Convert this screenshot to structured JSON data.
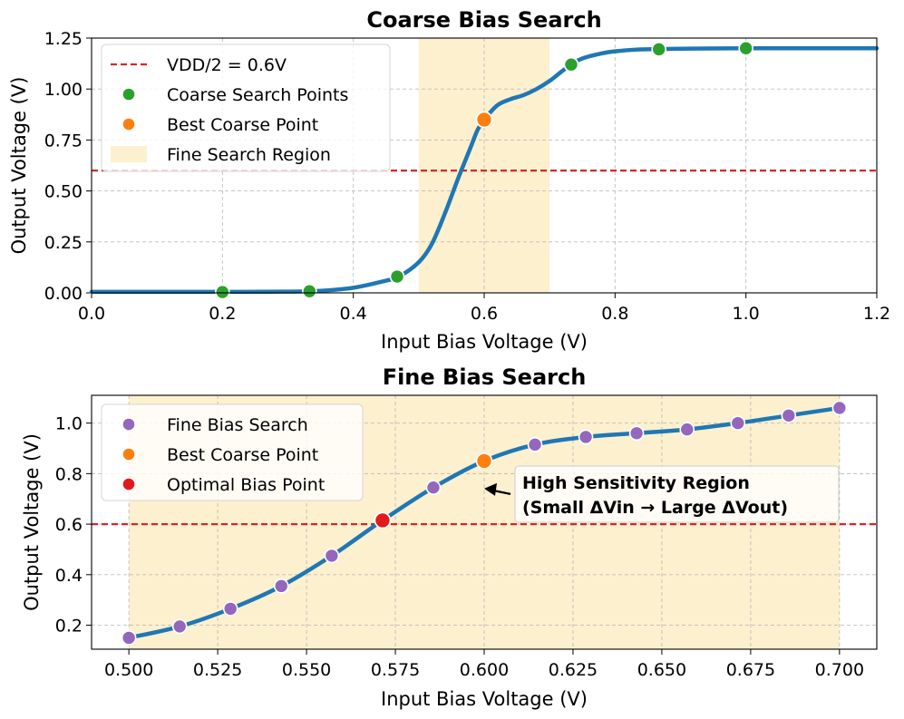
{
  "chart_data": [
    {
      "type": "line",
      "title": "Coarse Bias Search",
      "xlabel": "Input Bias Voltage (V)",
      "ylabel": "Output Voltage (V)",
      "xlim": [
        0.0,
        1.2
      ],
      "ylim": [
        0.0,
        1.25
      ],
      "xticks": [
        "0.0",
        "0.2",
        "0.4",
        "0.6",
        "0.8",
        "1.0",
        "1.2"
      ],
      "yticks": [
        "0.00",
        "0.25",
        "0.50",
        "0.75",
        "1.00",
        "1.25"
      ],
      "grid": true,
      "legend_position": "upper-left",
      "curve": {
        "color": "#1f77b4",
        "x": [
          0.0,
          0.1,
          0.2,
          0.3,
          0.35,
          0.4,
          0.45,
          0.47,
          0.5,
          0.52,
          0.54,
          0.56,
          0.57,
          0.58,
          0.59,
          0.6,
          0.62,
          0.64,
          0.66,
          0.68,
          0.7,
          0.72,
          0.733,
          0.75,
          0.78,
          0.8,
          0.83,
          0.867,
          0.9,
          1.0,
          1.1,
          1.2
        ],
        "y": [
          0.005,
          0.005,
          0.005,
          0.006,
          0.01,
          0.025,
          0.06,
          0.08,
          0.15,
          0.24,
          0.39,
          0.56,
          0.64,
          0.72,
          0.8,
          0.85,
          0.92,
          0.95,
          0.97,
          1.0,
          1.04,
          1.09,
          1.12,
          1.15,
          1.175,
          1.185,
          1.193,
          1.196,
          1.198,
          1.2,
          1.2,
          1.2
        ]
      },
      "reference_line": {
        "label": "VDD/2 = 0.6V",
        "y": 0.6,
        "color": "#d62728"
      },
      "shaded_region": {
        "label": "Fine Search Region",
        "x": [
          0.5,
          0.7
        ],
        "color": "#fdf0cf"
      },
      "series": [
        {
          "name": "Coarse Search Points",
          "color": "#2ca02c",
          "x": [
            0.2,
            0.333,
            0.467,
            0.733,
            0.867,
            1.0
          ],
          "y": [
            0.004,
            0.008,
            0.08,
            1.12,
            1.195,
            1.2
          ]
        },
        {
          "name": "Best Coarse Point",
          "color": "#ff7f0e",
          "x": [
            0.6
          ],
          "y": [
            0.85
          ]
        }
      ]
    },
    {
      "type": "line",
      "title": "Fine Bias Search",
      "xlabel": "Input Bias Voltage (V)",
      "ylabel": "Output Voltage (V)",
      "xlim": [
        0.4895,
        0.7105
      ],
      "ylim": [
        0.105,
        1.11
      ],
      "xticks": [
        "0.500",
        "0.525",
        "0.550",
        "0.575",
        "0.600",
        "0.625",
        "0.650",
        "0.675",
        "0.700"
      ],
      "yticks": [
        "0.2",
        "0.4",
        "0.6",
        "0.8",
        "1.0"
      ],
      "grid": true,
      "legend_position": "upper-left",
      "curve": {
        "color": "#1f77b4",
        "x": [
          0.5,
          0.5143,
          0.5286,
          0.5429,
          0.5571,
          0.5714,
          0.5857,
          0.6,
          0.6143,
          0.6286,
          0.6429,
          0.6571,
          0.6714,
          0.6857,
          0.7
        ],
        "y": [
          0.15,
          0.195,
          0.265,
          0.355,
          0.475,
          0.615,
          0.745,
          0.85,
          0.915,
          0.945,
          0.96,
          0.975,
          1.0,
          1.03,
          1.06
        ]
      },
      "reference_line": {
        "y": 0.6,
        "color": "#d62728"
      },
      "shaded_region": {
        "x": [
          0.5,
          0.7
        ],
        "color": "#fdf0cf"
      },
      "series": [
        {
          "name": "Fine Bias Search",
          "color": "#9467bd",
          "x": [
            0.5,
            0.5143,
            0.5286,
            0.5429,
            0.5571,
            0.5857,
            0.6143,
            0.6286,
            0.6429,
            0.6571,
            0.6714,
            0.6857,
            0.7
          ],
          "y": [
            0.15,
            0.195,
            0.265,
            0.355,
            0.475,
            0.745,
            0.915,
            0.945,
            0.96,
            0.975,
            1.0,
            1.03,
            1.06
          ]
        },
        {
          "name": "Best Coarse Point",
          "color": "#ff7f0e",
          "x": [
            0.6
          ],
          "y": [
            0.85
          ]
        },
        {
          "name": "Optimal Bias Point",
          "color": "#e31a1c",
          "x": [
            0.5714
          ],
          "y": [
            0.615
          ]
        }
      ],
      "annotation": {
        "lines": [
          "High Sensitivity Region",
          "(Small ΔVin → Large ΔVout)"
        ],
        "arrow_to": {
          "x": 0.6,
          "y": 0.73
        }
      }
    }
  ]
}
